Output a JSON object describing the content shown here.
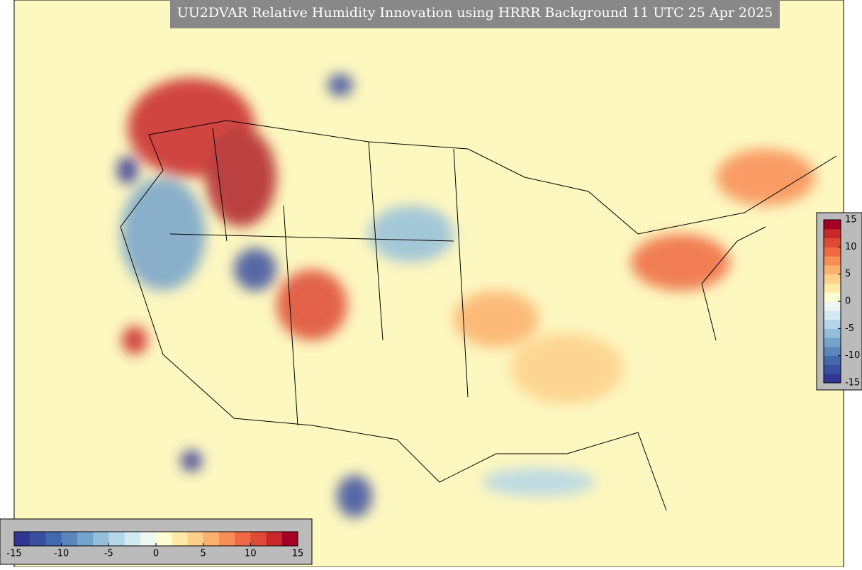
{
  "title": "UU2DVAR Relative Humidity Innovation using HRRR Background 11 UTC 25 Apr 2025",
  "colors": [
    "#313695",
    "#3a4fa0",
    "#4268ad",
    "#5b86bd",
    "#74a3cc",
    "#94bfdb",
    "#b4d6e8",
    "#d4eaf2",
    "#eef7f4",
    "#fffdd2",
    "#fee9a8",
    "#fdd08a",
    "#fcb06d",
    "#f88d55",
    "#ef6a43",
    "#de4a35",
    "#c9282a",
    "#a50026"
  ],
  "colorbars": [
    {
      "orientation": "horizontal",
      "range": [
        -15,
        15
      ],
      "ticks": [
        -15,
        -10,
        -5,
        0,
        5,
        10,
        15
      ]
    },
    {
      "orientation": "vertical",
      "range": [
        -15,
        15
      ],
      "ticks": [
        15,
        10,
        5,
        0,
        -5,
        -10,
        -15
      ]
    }
  ]
}
